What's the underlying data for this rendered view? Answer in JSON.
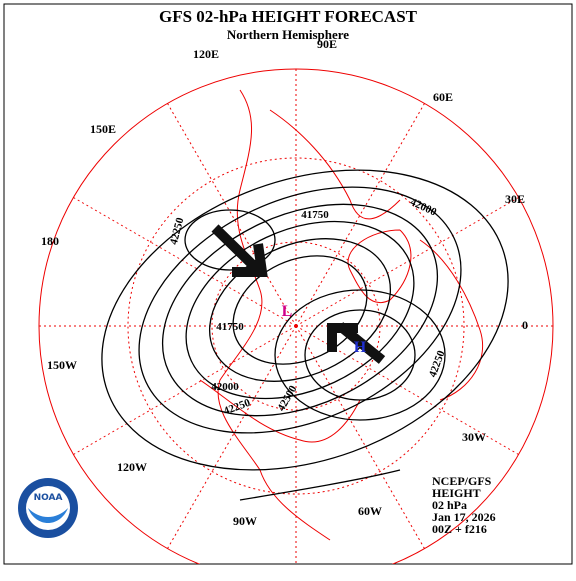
{
  "header": {
    "title": "GFS 02-hPa HEIGHT FORECAST",
    "subtitle": "Northern Hemisphere"
  },
  "longitude_labels": [
    "90E",
    "60E",
    "30E",
    "0",
    "30W",
    "60W",
    "90W",
    "120W",
    "150W",
    "180",
    "150E",
    "120E"
  ],
  "contour_labels": [
    "42250",
    "41750",
    "42000",
    "42250",
    "42000",
    "42250",
    "41750",
    "42500"
  ],
  "pressure_centers": [
    "L",
    "H"
  ],
  "info": [
    "NCEP/GFS",
    "HEIGHT",
    "02 hPa",
    "Jan 17, 2026",
    "00Z + f216"
  ],
  "logo": "NOAA"
}
